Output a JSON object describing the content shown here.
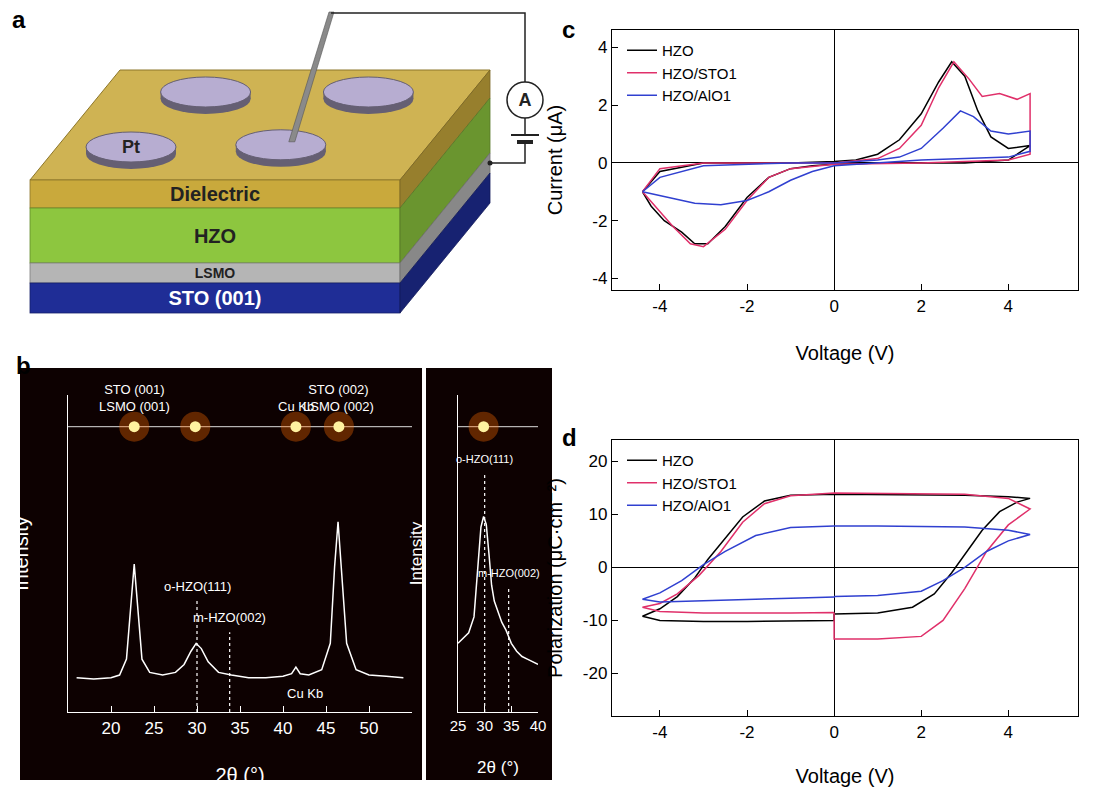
{
  "diagram": {
    "panel_label": "a",
    "electrode": {
      "label": "Pt",
      "color": "#b7add1"
    },
    "layers": [
      {
        "label": "Dielectric",
        "color": "#c9a93c"
      },
      {
        "label": "HZO",
        "color": "#8dc63f"
      },
      {
        "label": "LSMO",
        "color": "#b5b5b5"
      },
      {
        "label": "STO (001)",
        "color": "#1f2d96"
      }
    ],
    "meter": "A"
  },
  "chart_data": [
    {
      "panel_label": "b",
      "type": "line",
      "x_label": "2θ (°)",
      "y_label": "Intensity",
      "tick_labels": "x",
      "xlim": [
        15,
        55
      ],
      "xticks": [
        20,
        25,
        30,
        35,
        40,
        45,
        50
      ],
      "ylim": [
        0,
        12
      ],
      "series": [
        {
          "color": "#ffffff",
          "x": [
            16,
            18,
            20,
            21,
            21.8,
            22.3,
            22.7,
            23.1,
            23.6,
            24.5,
            26,
            27.5,
            28.5,
            29.3,
            29.9,
            30.5,
            31.3,
            32.5,
            34,
            36,
            38,
            40,
            41,
            41.5,
            42,
            43,
            44.5,
            45.5,
            46,
            46.4,
            46.8,
            47.4,
            48.5,
            50,
            52,
            54
          ],
          "values": [
            1.3,
            1.25,
            1.3,
            1.4,
            2,
            4,
            5.6,
            4,
            2,
            1.5,
            1.4,
            1.5,
            1.8,
            2.3,
            2.6,
            2.4,
            1.9,
            1.5,
            1.4,
            1.3,
            1.3,
            1.35,
            1.45,
            1.7,
            1.45,
            1.4,
            1.6,
            2.6,
            5.5,
            7.2,
            5.5,
            2.6,
            1.6,
            1.4,
            1.35,
            1.3
          ]
        }
      ],
      "spots": {
        "x": [
          22.7,
          29.8,
          41.5,
          46.5
        ],
        "y": [
          10.8,
          10.8,
          10.8,
          10.8
        ],
        "labels": [
          [
            "STO (001)",
            "LSMO (001)"
          ],
          null,
          [
            "Cu Kb"
          ],
          [
            "STO (002)",
            "LSMO (002)"
          ]
        ]
      },
      "reference_lines": [
        {
          "x": 30,
          "label": "o-HZO(111)"
        },
        {
          "x": 33.8,
          "label": "m-HZO(002)"
        }
      ],
      "annotations": [
        {
          "x": 42.5,
          "y": 0.7,
          "text": "Cu Kb"
        }
      ]
    },
    {
      "type": "line",
      "x_label": "2θ (°)",
      "y_label": "Intensity",
      "tick_labels": "x",
      "xlim": [
        25,
        40
      ],
      "xticks": [
        25,
        30,
        35,
        40
      ],
      "ylim": [
        0,
        12
      ],
      "series": [
        {
          "color": "#ffffff",
          "x": [
            25,
            26,
            27,
            28,
            28.8,
            29.3,
            29.8,
            30.3,
            30.8,
            31.3,
            31.8,
            32.5,
            33.2,
            34,
            35,
            36,
            37,
            38,
            39,
            40
          ],
          "values": [
            2.6,
            2.8,
            3,
            3.6,
            5.5,
            7,
            7.4,
            7.1,
            6,
            4.8,
            4.2,
            3.8,
            3.4,
            3.1,
            2.6,
            2.3,
            2.1,
            2,
            1.9,
            1.8
          ]
        }
      ],
      "spots": {
        "x": [
          29.8
        ],
        "y": [
          10.8
        ]
      },
      "reference_lines": [
        {
          "x": 30,
          "label": "o-HZO(111)"
        },
        {
          "x": 34.5,
          "label": "m-HZO(002)"
        }
      ]
    },
    {
      "panel_label": "c",
      "type": "line",
      "x_label": "Voltage (V)",
      "y_label": "Current (μA)",
      "xlim": [
        -5.1,
        5.6
      ],
      "xticks": [
        -4,
        -2,
        0,
        2,
        4
      ],
      "ylim": [
        -4.4,
        4.6
      ],
      "yticks": [
        -4,
        -2,
        0,
        2,
        4
      ],
      "legend": "upper left",
      "series": [
        {
          "name": "HZO",
          "color": "#000000",
          "x": [
            -4.4,
            -4,
            -3,
            -2,
            -1,
            0,
            0.5,
            1,
            1.5,
            2,
            2.4,
            2.7,
            3,
            3.3,
            3.6,
            4,
            4.5,
            4,
            3,
            2,
            1,
            0,
            -0.5,
            -1,
            -1.5,
            -2,
            -2.5,
            -2.9,
            -3.2,
            -3.5,
            -3.9,
            -4.2,
            -4.4
          ],
          "values": [
            -1,
            -0.3,
            0,
            0,
            0,
            0.05,
            0.1,
            0.3,
            0.8,
            1.7,
            2.8,
            3.5,
            3,
            1.8,
            0.9,
            0.5,
            0.6,
            0.1,
            0,
            0,
            0,
            -0.05,
            -0.1,
            -0.2,
            -0.5,
            -1.2,
            -2.2,
            -2.8,
            -2.8,
            -2.4,
            -2,
            -1.5,
            -1
          ]
        },
        {
          "name": "HZO/STO1",
          "color": "#e0306a",
          "x": [
            -4.4,
            -4,
            -3,
            -1,
            0,
            1,
            1.5,
            2,
            2.4,
            2.75,
            3.1,
            3.4,
            3.8,
            4.2,
            4.5,
            4.5,
            4,
            2,
            0,
            -1,
            -1.5,
            -2,
            -2.5,
            -3,
            -3.3,
            -3.7,
            -4.1,
            -4.4
          ],
          "values": [
            -1,
            -0.2,
            0,
            0,
            0,
            0.15,
            0.5,
            1.3,
            2.6,
            3.5,
            2.9,
            2.3,
            2.4,
            2.2,
            2.4,
            0.3,
            0.1,
            0,
            -0.05,
            -0.2,
            -0.5,
            -1.3,
            -2.3,
            -2.9,
            -2.8,
            -2.2,
            -1.5,
            -1
          ]
        },
        {
          "name": "HZO/AlO1",
          "color": "#3040d0",
          "x": [
            -4.4,
            -4,
            -3,
            -1,
            0,
            1,
            1.5,
            2,
            2.5,
            2.9,
            3.2,
            3.6,
            4,
            4.5,
            4.5,
            4,
            2,
            0,
            -0.5,
            -1,
            -1.5,
            -2,
            -2.6,
            -3.2,
            -3.8,
            -4.4
          ],
          "values": [
            -1,
            -0.5,
            -0.1,
            0,
            0,
            0.1,
            0.2,
            0.5,
            1.2,
            1.8,
            1.6,
            1.1,
            1,
            1.1,
            0.4,
            0.2,
            0.1,
            -0.1,
            -0.3,
            -0.6,
            -1,
            -1.3,
            -1.45,
            -1.4,
            -1.2,
            -1
          ]
        }
      ]
    },
    {
      "panel_label": "d",
      "type": "line",
      "x_label": "Voltage (V)",
      "y_label": "Polarization (μC·cm⁻²)",
      "xlim": [
        -5.1,
        5.6
      ],
      "xticks": [
        -4,
        -2,
        0,
        2,
        4
      ],
      "ylim": [
        -28,
        24
      ],
      "yticks": [
        -20,
        -10,
        0,
        10,
        20
      ],
      "legend": "upper left",
      "series": [
        {
          "name": "HZO",
          "color": "#000000",
          "x": [
            0,
            1,
            1.8,
            2.3,
            2.7,
            3,
            3.4,
            3.8,
            4.2,
            4.5,
            4,
            3,
            2,
            1,
            0,
            -1,
            -1.6,
            -2.1,
            -2.5,
            -2.9,
            -3.2,
            -3.6,
            -4,
            -4.4,
            -4,
            -3,
            -2,
            -1,
            0,
            0
          ],
          "values": [
            -8.8,
            -8.6,
            -7.5,
            -5,
            -1,
            2.5,
            7,
            10.5,
            12.3,
            13,
            13.3,
            13.6,
            13.7,
            13.8,
            13.8,
            13.6,
            12.5,
            9.5,
            5.5,
            1.5,
            -2,
            -5.5,
            -7.8,
            -9.2,
            -10,
            -10.2,
            -10.2,
            -10.1,
            -10,
            -8.8
          ]
        },
        {
          "name": "HZO/STO1",
          "color": "#e0306a",
          "x": [
            0,
            0,
            1,
            2,
            2.5,
            3,
            3.5,
            4,
            4.5,
            4,
            3,
            0,
            -1,
            -1.6,
            -2.1,
            -2.6,
            -3.1,
            -3.6,
            -4,
            -4.4,
            -4,
            -3,
            -1,
            0
          ],
          "values": [
            -8.5,
            -13.5,
            -13.5,
            -13,
            -10,
            -4,
            3,
            8,
            11,
            13,
            13.8,
            14,
            13.5,
            12,
            8.5,
            3,
            -1.5,
            -5,
            -6.8,
            -7.5,
            -8.3,
            -8.6,
            -8.6,
            -8.5
          ]
        },
        {
          "name": "HZO/AlO1",
          "color": "#3040d0",
          "x": [
            0,
            1,
            2,
            2.5,
            3,
            3.5,
            4,
            4.5,
            4,
            3,
            1,
            0,
            -1,
            -1.8,
            -2.5,
            -3,
            -3.5,
            -4,
            -4.4,
            -4,
            -3,
            -2,
            -1,
            0,
            0
          ],
          "values": [
            -5.5,
            -5.3,
            -4.5,
            -2.5,
            0,
            3,
            5,
            6.2,
            7,
            7.6,
            7.8,
            7.8,
            7.5,
            6,
            3,
            0.5,
            -2.5,
            -4.8,
            -6,
            -6.5,
            -6.3,
            -6,
            -5.8,
            -5.6,
            -5.5
          ]
        }
      ]
    }
  ]
}
